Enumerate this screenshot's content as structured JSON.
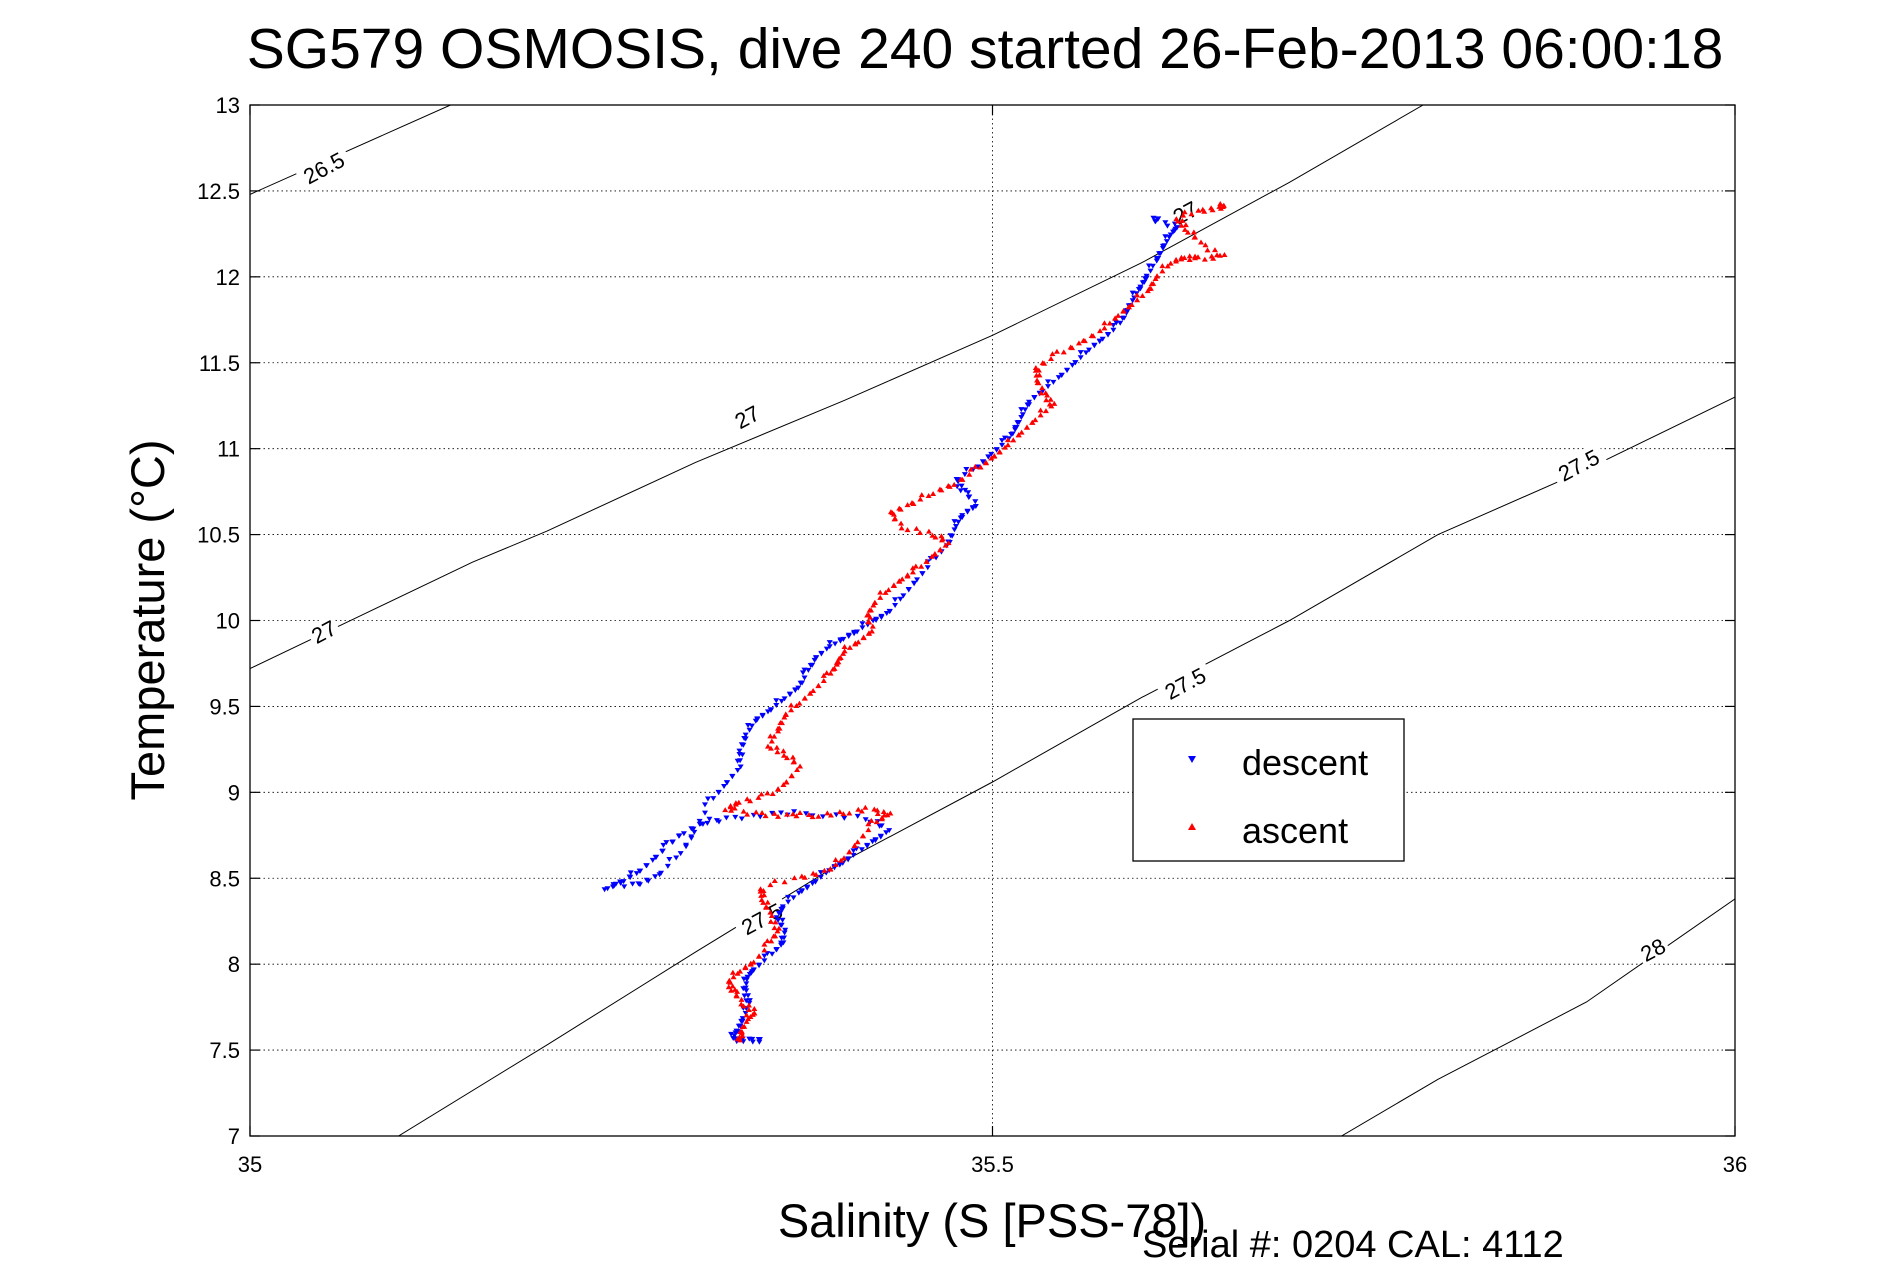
{
  "chart_data": {
    "type": "scatter",
    "title": "SG579 OSMOSIS, dive 240 started 26-Feb-2013 06:00:18",
    "xlabel": "Salinity (S [PSS-78])",
    "ylabel": "Temperature (°C)",
    "footnote": "Serial #: 0204  CAL: 4112",
    "xlim": [
      35,
      36
    ],
    "ylim": [
      7,
      13
    ],
    "xticks": [
      "35",
      "35.5",
      "36"
    ],
    "yticks": [
      "7",
      "7.5",
      "8",
      "8.5",
      "9",
      "9.5",
      "10",
      "10.5",
      "11",
      "11.5",
      "12",
      "12.5",
      "13"
    ],
    "grid": true,
    "legend_position": "center-right",
    "legend": [
      {
        "label": "descent",
        "color": "#0000ff",
        "marker": "triangle-down"
      },
      {
        "label": "ascent",
        "color": "#ff0000",
        "marker": "triangle-up"
      }
    ],
    "density_contours": [
      {
        "label": "26.5",
        "points": [
          [
            35.0,
            12.48
          ],
          [
            35.135,
            13.0
          ]
        ]
      },
      {
        "label": "27",
        "points": [
          [
            35.0,
            9.72
          ],
          [
            35.075,
            10.03
          ],
          [
            35.15,
            10.34
          ],
          [
            35.2,
            10.52
          ],
          [
            35.3,
            10.92
          ],
          [
            35.4,
            11.28
          ],
          [
            35.5,
            11.66
          ],
          [
            35.6,
            12.08
          ],
          [
            35.7,
            12.55
          ],
          [
            35.79,
            13.0
          ]
        ]
      },
      {
        "label": "27.5",
        "points": [
          [
            35.1,
            7.0
          ],
          [
            35.2,
            7.53
          ],
          [
            35.3,
            8.07
          ],
          [
            35.4,
            8.6
          ],
          [
            35.5,
            9.06
          ],
          [
            35.6,
            9.55
          ],
          [
            35.7,
            10.0
          ],
          [
            35.8,
            10.5
          ],
          [
            35.9,
            10.88
          ],
          [
            36.0,
            11.3
          ]
        ]
      },
      {
        "label": "28",
        "points": [
          [
            35.735,
            7.0
          ],
          [
            35.8,
            7.33
          ],
          [
            35.9,
            7.78
          ],
          [
            36.0,
            8.38
          ]
        ]
      }
    ],
    "contour_labels": [
      {
        "label": "26.5",
        "x": 35.05,
        "y": 12.63
      },
      {
        "label": "27",
        "x": 35.05,
        "y": 9.93
      },
      {
        "label": "27",
        "x": 35.335,
        "y": 11.18
      },
      {
        "label": "27",
        "x": 35.63,
        "y": 12.37
      },
      {
        "label": "27.5",
        "x": 35.895,
        "y": 10.9
      },
      {
        "label": "27.5",
        "x": 35.63,
        "y": 9.63
      },
      {
        "label": "27.5",
        "x": 35.345,
        "y": 8.26
      },
      {
        "label": "28",
        "x": 35.945,
        "y": 8.08
      }
    ],
    "series": [
      {
        "name": "descent",
        "color": "#0000ff",
        "marker": "triangle-down",
        "points": [
          [
            35.345,
            7.55
          ],
          [
            35.335,
            7.56
          ],
          [
            35.325,
            7.57
          ],
          [
            35.328,
            7.62
          ],
          [
            35.333,
            7.7
          ],
          [
            35.335,
            7.78
          ],
          [
            35.333,
            7.86
          ],
          [
            35.335,
            7.93
          ],
          [
            35.34,
            7.98
          ],
          [
            35.35,
            8.05
          ],
          [
            35.358,
            8.12
          ],
          [
            35.36,
            8.2
          ],
          [
            35.355,
            8.28
          ],
          [
            35.36,
            8.35
          ],
          [
            35.37,
            8.42
          ],
          [
            35.38,
            8.48
          ],
          [
            35.39,
            8.55
          ],
          [
            35.4,
            8.6
          ],
          [
            35.41,
            8.66
          ],
          [
            35.42,
            8.72
          ],
          [
            35.43,
            8.78
          ],
          [
            35.415,
            8.85
          ],
          [
            35.38,
            8.88
          ],
          [
            35.35,
            8.87
          ],
          [
            35.32,
            8.85
          ],
          [
            35.305,
            8.82
          ],
          [
            35.29,
            8.76
          ],
          [
            35.28,
            8.68
          ],
          [
            35.27,
            8.6
          ],
          [
            35.26,
            8.53
          ],
          [
            35.25,
            8.48
          ],
          [
            35.24,
            8.45
          ],
          [
            35.26,
            8.46
          ],
          [
            35.275,
            8.52
          ],
          [
            35.29,
            8.65
          ],
          [
            35.3,
            8.78
          ],
          [
            35.31,
            8.95
          ],
          [
            35.32,
            9.05
          ],
          [
            35.33,
            9.15
          ],
          [
            35.33,
            9.25
          ],
          [
            35.335,
            9.35
          ],
          [
            35.34,
            9.42
          ],
          [
            35.35,
            9.48
          ],
          [
            35.36,
            9.55
          ],
          [
            35.37,
            9.62
          ],
          [
            35.375,
            9.7
          ],
          [
            35.38,
            9.78
          ],
          [
            35.39,
            9.85
          ],
          [
            35.4,
            9.9
          ],
          [
            35.41,
            9.95
          ],
          [
            35.42,
            10.0
          ],
          [
            35.43,
            10.05
          ],
          [
            35.44,
            10.15
          ],
          [
            35.45,
            10.25
          ],
          [
            35.46,
            10.35
          ],
          [
            35.47,
            10.45
          ],
          [
            35.475,
            10.55
          ],
          [
            35.48,
            10.62
          ],
          [
            35.49,
            10.68
          ],
          [
            35.48,
            10.75
          ],
          [
            35.475,
            10.82
          ],
          [
            35.49,
            10.9
          ],
          [
            35.5,
            10.98
          ],
          [
            35.51,
            11.05
          ],
          [
            35.515,
            11.12
          ],
          [
            35.52,
            11.2
          ],
          [
            35.525,
            11.28
          ],
          [
            35.535,
            11.35
          ],
          [
            35.545,
            11.42
          ],
          [
            35.555,
            11.5
          ],
          [
            35.565,
            11.58
          ],
          [
            35.575,
            11.65
          ],
          [
            35.585,
            11.72
          ],
          [
            35.59,
            11.8
          ],
          [
            35.595,
            11.88
          ],
          [
            35.6,
            11.95
          ],
          [
            35.605,
            12.02
          ],
          [
            35.61,
            12.1
          ],
          [
            35.615,
            12.18
          ],
          [
            35.62,
            12.25
          ],
          [
            35.625,
            12.3
          ],
          [
            35.61,
            12.33
          ]
        ]
      },
      {
        "name": "ascent",
        "color": "#ff0000",
        "marker": "triangle-up",
        "points": [
          [
            35.33,
            7.55
          ],
          [
            35.33,
            7.6
          ],
          [
            35.335,
            7.68
          ],
          [
            35.34,
            7.72
          ],
          [
            35.332,
            7.78
          ],
          [
            35.325,
            7.84
          ],
          [
            35.322,
            7.9
          ],
          [
            35.33,
            7.96
          ],
          [
            35.34,
            8.02
          ],
          [
            35.35,
            8.12
          ],
          [
            35.355,
            8.2
          ],
          [
            35.35,
            8.3
          ],
          [
            35.345,
            8.38
          ],
          [
            35.345,
            8.45
          ],
          [
            35.37,
            8.5
          ],
          [
            35.39,
            8.55
          ],
          [
            35.4,
            8.62
          ],
          [
            35.41,
            8.72
          ],
          [
            35.42,
            8.82
          ],
          [
            35.43,
            8.87
          ],
          [
            35.42,
            8.9
          ],
          [
            35.4,
            8.88
          ],
          [
            35.38,
            8.87
          ],
          [
            35.36,
            8.86
          ],
          [
            35.34,
            8.88
          ],
          [
            35.32,
            8.9
          ],
          [
            35.33,
            8.95
          ],
          [
            35.35,
            8.98
          ],
          [
            35.36,
            9.05
          ],
          [
            35.37,
            9.15
          ],
          [
            35.36,
            9.22
          ],
          [
            35.35,
            9.28
          ],
          [
            35.355,
            9.36
          ],
          [
            35.36,
            9.45
          ],
          [
            35.37,
            9.52
          ],
          [
            35.38,
            9.6
          ],
          [
            35.39,
            9.68
          ],
          [
            35.395,
            9.75
          ],
          [
            35.4,
            9.82
          ],
          [
            35.41,
            9.88
          ],
          [
            35.42,
            9.95
          ],
          [
            35.415,
            10.02
          ],
          [
            35.42,
            10.1
          ],
          [
            35.43,
            10.18
          ],
          [
            35.44,
            10.25
          ],
          [
            35.45,
            10.3
          ],
          [
            35.46,
            10.38
          ],
          [
            35.47,
            10.45
          ],
          [
            35.46,
            10.5
          ],
          [
            35.44,
            10.55
          ],
          [
            35.43,
            10.62
          ],
          [
            35.445,
            10.68
          ],
          [
            35.46,
            10.74
          ],
          [
            35.475,
            10.8
          ],
          [
            35.49,
            10.88
          ],
          [
            35.5,
            10.95
          ],
          [
            35.51,
            11.02
          ],
          [
            35.52,
            11.1
          ],
          [
            35.53,
            11.18
          ],
          [
            35.54,
            11.25
          ],
          [
            35.535,
            11.32
          ],
          [
            35.53,
            11.4
          ],
          [
            35.53,
            11.48
          ],
          [
            35.545,
            11.55
          ],
          [
            35.56,
            11.62
          ],
          [
            35.575,
            11.7
          ],
          [
            35.585,
            11.78
          ],
          [
            35.595,
            11.85
          ],
          [
            35.605,
            11.92
          ],
          [
            35.61,
            12.0
          ],
          [
            35.62,
            12.08
          ],
          [
            35.63,
            12.12
          ],
          [
            35.64,
            12.1
          ],
          [
            35.655,
            12.12
          ],
          [
            35.64,
            12.2
          ],
          [
            35.63,
            12.28
          ],
          [
            35.625,
            12.35
          ],
          [
            35.64,
            12.38
          ],
          [
            35.655,
            12.41
          ]
        ]
      }
    ]
  }
}
